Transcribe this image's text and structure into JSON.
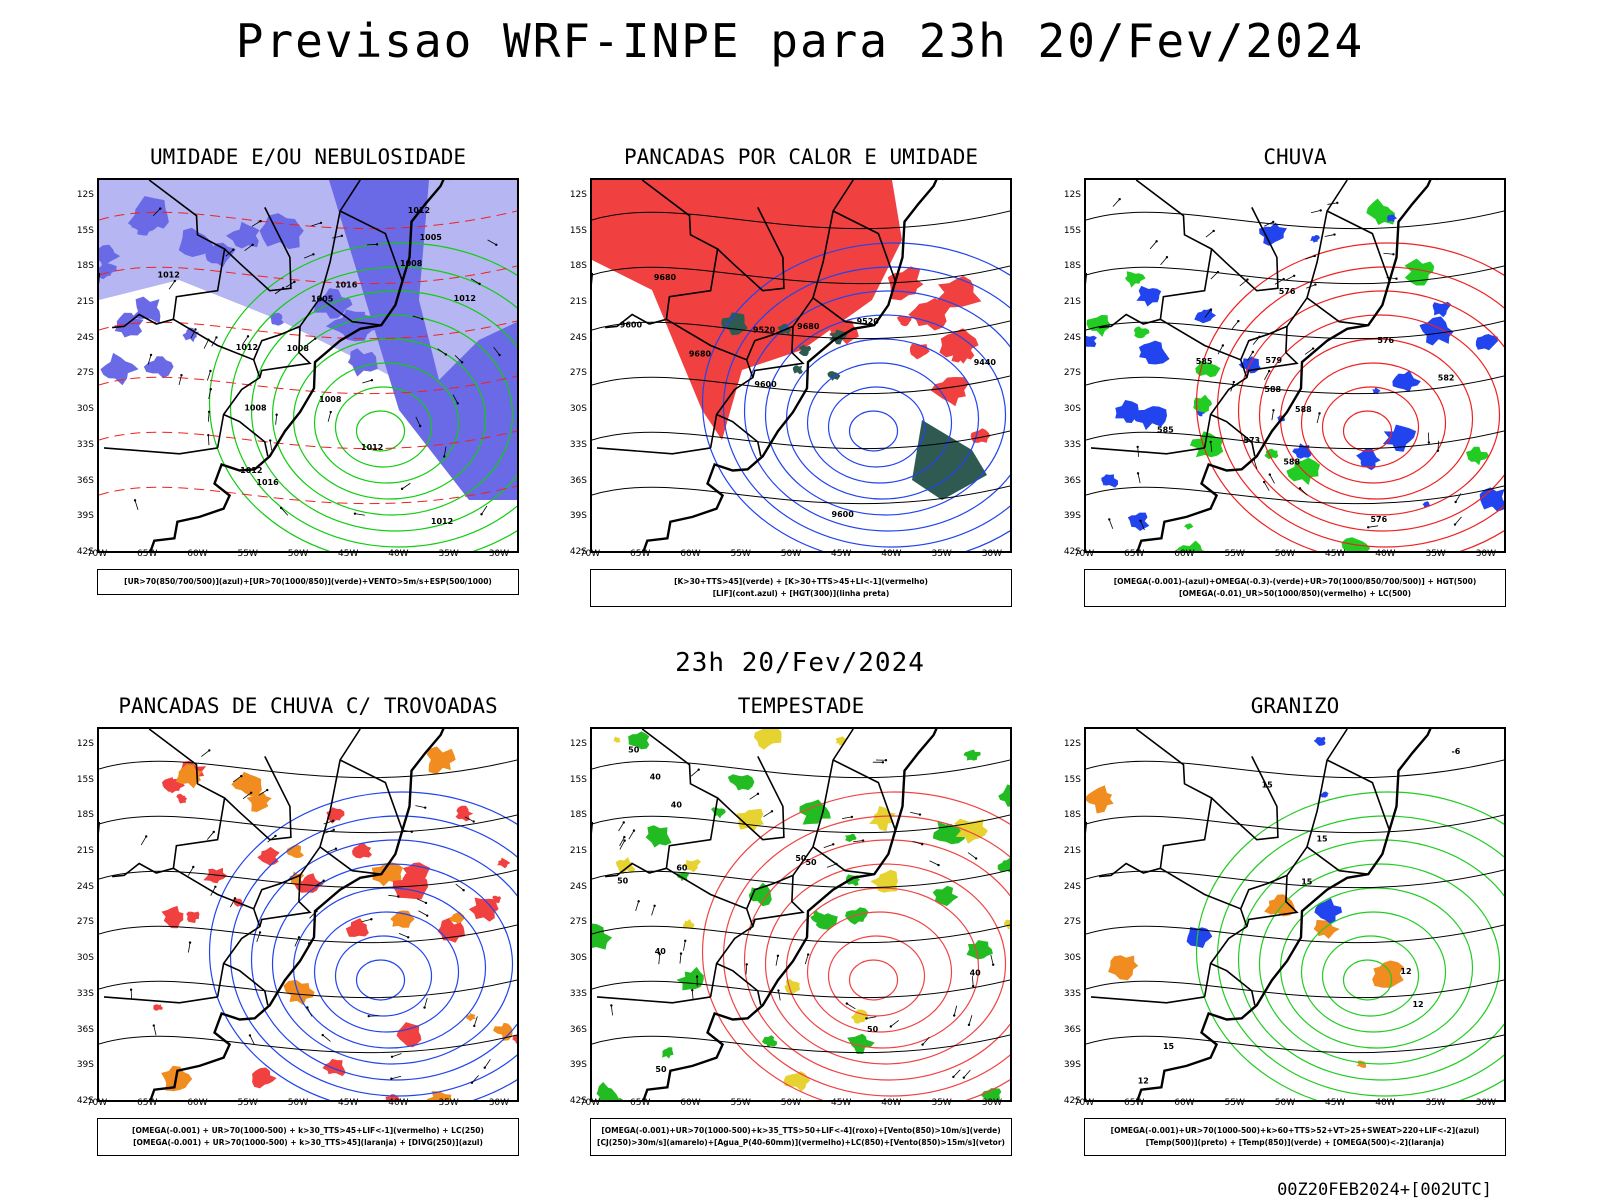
{
  "title": "Previsao WRF-INPE  para 23h 20/Fev/2024",
  "mid_title": "23h 20/Fev/2024",
  "footer": "00Z20FEB2024+[002UTC]",
  "axes": {
    "lat_labels": [
      "12S",
      "15S",
      "18S",
      "21S",
      "24S",
      "27S",
      "30S",
      "33S",
      "36S",
      "39S",
      "42S"
    ],
    "lon_labels": [
      "70W",
      "65W",
      "60W",
      "55W",
      "50W",
      "45W",
      "40W",
      "35W",
      "30W"
    ]
  },
  "panels": [
    {
      "id": "umidade",
      "title": "UMIDADE E/OU NEBULOSIDADE",
      "legend": [
        "[UR>70(850/700/500)](azul)+[UR>70(1000/850)](verde)+VENTO>5m/s+ESP(500/1000)"
      ],
      "contour_labels": [
        "1012",
        "1012",
        "1008",
        "1012",
        "1008",
        "1012",
        "1005",
        "1008",
        "1016",
        "1005",
        "1012",
        "1012",
        "1008",
        "1012",
        "1016"
      ],
      "colors": {
        "fill_primary": "#6a6ae6",
        "fill_secondary": "#b6b6f2",
        "line": "#11cc11",
        "dash": "#ee2222"
      }
    },
    {
      "id": "pancadas-calor",
      "title": "PANCADAS POR CALOR E UMIDADE",
      "legend": [
        "[K>30+TTS>45](verde)  +  [K>30+TTS>45+LI<-1](vermelho)",
        "[LIF](cont.azul)  +  [HGT(300)](linha preta)"
      ],
      "contour_labels": [
        "9680",
        "9680",
        "9680",
        "9600",
        "9600",
        "9520",
        "9520",
        "9600",
        "9440"
      ],
      "colors": {
        "fill_primary": "#f04040",
        "fill_secondary": "#2e5a52",
        "line": "#2244ee",
        "dash": "#000000"
      }
    },
    {
      "id": "chuva",
      "title": "CHUVA",
      "legend": [
        "[OMEGA(-0.001)-(azul)+OMEGA(-0.3)-(verde)+UR>70(1000/850/700/500)]  +  HGT(500)",
        "[OMEGA(-0.01)_UR>50(1000/850)(vermelho)  +  LC(500)"
      ],
      "contour_labels": [
        "588",
        "582",
        "576",
        "576",
        "579",
        "588",
        "585",
        "576",
        "573",
        "588",
        "585"
      ],
      "colors": {
        "fill_primary": "#2244ee",
        "fill_secondary": "#22cc22",
        "line": "#ee2222",
        "dash": "#000000"
      }
    },
    {
      "id": "pancadas-trovoadas",
      "title": "PANCADAS DE CHUVA C/ TROVOADAS",
      "legend": [
        "[OMEGA(-0.001)  +  UR>70(1000-500)  +  k>30_TTS>45+LIF<-1](vermelho)  +  LC(250)",
        "[OMEGA(-0.001)  +  UR>70(1000-500)  +  k>30_TTS>45](laranja)  +  [DIVG(250)](azul)"
      ],
      "contour_labels": [],
      "colors": {
        "fill_primary": "#f04040",
        "fill_secondary": "#f08c20",
        "line": "#2244ee",
        "dash": "#000000"
      }
    },
    {
      "id": "tempestade",
      "title": "TEMPESTADE",
      "legend": [
        "[OMEGA(-0.001)+UR>70(1000-500)+k>35_TTS>50+LIF<-4](roxo)+[Vento(850)>10m/s](verde)",
        "[CJ(250)>30m/s](amarelo)+[Agua_P(40-60mm)](vermelho)+LC(850)+[Vento(850)>15m/s](vetor)"
      ],
      "contour_labels": [
        "50",
        "50",
        "60",
        "40",
        "50",
        "40",
        "40",
        "50",
        "40",
        "50",
        "50"
      ],
      "colors": {
        "fill_primary": "#22bb22",
        "fill_secondary": "#e6d230",
        "line": "#ee4444",
        "dash": "#000000"
      }
    },
    {
      "id": "granizo",
      "title": "GRANIZO",
      "legend": [
        "[OMEGA(-0.001)+UR>70(1000-500)+k>60+TTS>52+VT>25+SWEAT>220+LIF<-2](azul)",
        "[Temp(500)](preto)  +  [Temp(850)](verde)  +  [OMEGA(500)<-2](laranja)"
      ],
      "contour_labels": [
        "15",
        "12",
        "15",
        "12",
        "15",
        "-6",
        "12",
        "15"
      ],
      "colors": {
        "fill_primary": "#f08c20",
        "fill_secondary": "#2244ee",
        "line": "#22cc22",
        "dash": "#000000"
      }
    }
  ]
}
